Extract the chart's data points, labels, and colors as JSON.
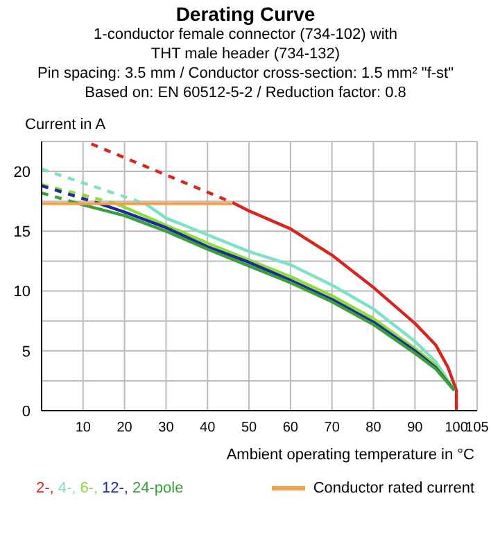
{
  "chart_data": {
    "type": "line",
    "title": "Derating Curve",
    "subtitle": "1-conductor female connector (734-102) with\nTHT male header (734-132)\nPin spacing: 3.5 mm / Conductor cross-section: 1.5 mm² \"f-st\"\nBased on: EN 60512-5-2 / Reduction factor: 0.8",
    "xlabel": "Ambient operating temperature in °C",
    "ylabel": "Current in A",
    "xlim": [
      0,
      105
    ],
    "xticks": [
      10,
      20,
      30,
      40,
      50,
      60,
      70,
      80,
      90,
      100,
      105
    ],
    "ylim": [
      0,
      22.5
    ],
    "yticks": [
      0,
      {
        "value": 2.5,
        "label": null
      },
      5,
      {
        "value": 7.5,
        "label": null
      },
      10,
      {
        "value": 12.5,
        "label": null
      },
      15,
      {
        "value": 17.5,
        "label": null
      },
      20,
      {
        "value": 22.5,
        "label": null
      }
    ],
    "grid": true,
    "legend": "bottom",
    "marker": "none",
    "series": [
      {
        "color": "#d7261e",
        "line_style": "dashed",
        "x": [
          12,
          46
        ],
        "values": [
          22.3,
          17.4
        ]
      },
      {
        "color": "#7de0c8",
        "line_style": "dashed",
        "x": [
          0,
          25
        ],
        "values": [
          20.2,
          17.3
        ]
      },
      {
        "color": "#8ddc3a",
        "line_style": "dashed",
        "x": [
          0,
          18
        ],
        "values": [
          18.9,
          17.3
        ]
      },
      {
        "color": "#1e2a9c",
        "line_style": "dashed",
        "x": [
          0,
          14
        ],
        "values": [
          18.8,
          17.3
        ]
      },
      {
        "color": "#3aa03a",
        "line_style": "dashed",
        "x": [
          0,
          8
        ],
        "values": [
          18.2,
          17.4
        ]
      },
      {
        "name": "2-,",
        "color": "#d7261e",
        "line_style": "solid",
        "x": [
          46,
          50,
          60,
          70,
          80,
          90,
          95,
          98,
          100,
          100
        ],
        "values": [
          17.4,
          16.7,
          15.2,
          13.0,
          10.3,
          7.3,
          5.5,
          3.6,
          1.7,
          0
        ]
      },
      {
        "name": "4-,",
        "color": "#7de0c8",
        "line_style": "solid",
        "x": [
          25,
          30,
          40,
          50,
          60,
          70,
          80,
          90,
          95,
          99.5
        ],
        "values": [
          17.3,
          16.1,
          14.7,
          13.3,
          12.2,
          10.5,
          8.5,
          5.8,
          4.1,
          1.7
        ]
      },
      {
        "name": "6-,",
        "color": "#8ddc3a",
        "line_style": "solid",
        "x": [
          18,
          20,
          30,
          40,
          50,
          60,
          70,
          80,
          90,
          95,
          99.5
        ],
        "values": [
          17.3,
          17.0,
          15.5,
          14.0,
          12.6,
          11.2,
          9.6,
          7.7,
          5.2,
          3.8,
          1.7
        ]
      },
      {
        "name": "12-,",
        "color": "#1e2a9c",
        "line_style": "solid",
        "x": [
          14,
          20,
          30,
          40,
          50,
          60,
          70,
          80,
          90,
          95,
          99.5
        ],
        "values": [
          17.3,
          16.6,
          15.3,
          13.7,
          12.4,
          10.9,
          9.3,
          7.4,
          5.0,
          3.6,
          1.7
        ]
      },
      {
        "name": "24-pole",
        "color": "#3aa03a",
        "line_style": "solid",
        "x": [
          8,
          10,
          20,
          30,
          40,
          50,
          60,
          70,
          80,
          90,
          95,
          99.5
        ],
        "values": [
          17.4,
          17.2,
          16.3,
          15.0,
          13.5,
          12.1,
          10.7,
          9.1,
          7.2,
          4.8,
          3.5,
          1.7
        ]
      },
      {
        "name": "Conductor rated current",
        "color": "#f5a04a",
        "line_style": "solid",
        "x": [
          0,
          46
        ],
        "values": [
          17.3,
          17.3
        ]
      }
    ]
  }
}
